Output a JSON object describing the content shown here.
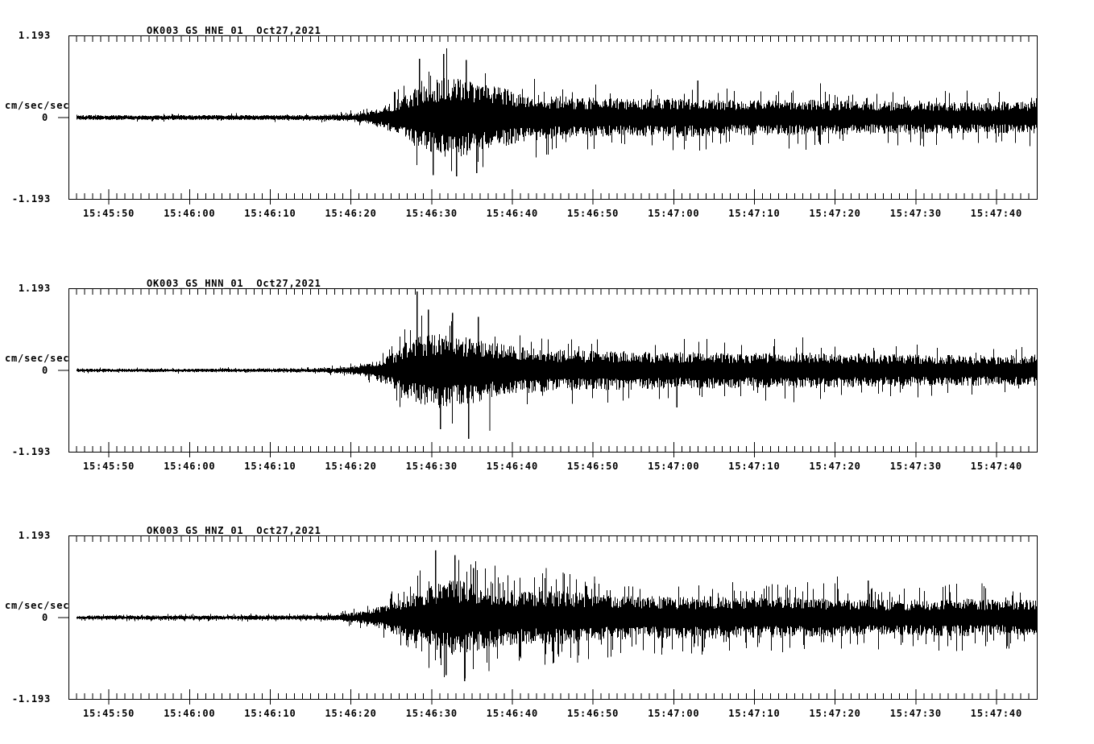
{
  "colors": {
    "background": "#ffffff",
    "ink": "#000000"
  },
  "time_axis": {
    "start_time": "15:45:45",
    "end_time": "15:47:45",
    "duration_sec": 120,
    "major_tick_interval_sec": 10,
    "minor_tick_interval_sec": 1,
    "tick_seconds": [
      5,
      15,
      25,
      35,
      45,
      55,
      65,
      75,
      85,
      95,
      105,
      115
    ],
    "tick_labels": [
      "15:45:50",
      "15:46:00",
      "15:46:10",
      "15:46:20",
      "15:46:30",
      "15:46:40",
      "15:46:50",
      "15:47:00",
      "15:47:10",
      "15:47:20",
      "15:47:30",
      "15:47:40"
    ]
  },
  "chart_data": [
    {
      "type": "line",
      "subtype": "seismogram",
      "title": "OK003_GS_HNE_01",
      "date": "Oct27,2021",
      "station": "OK003",
      "network": "GS",
      "channel": "HNE",
      "location": "01",
      "y_axis": {
        "units": "cm/sec/sec",
        "max_label": "1.193",
        "zero_label": "0",
        "min_label": "-1.193",
        "ylim": [
          -1.193,
          1.193
        ]
      },
      "x_start": "15:45:45",
      "x_end": "15:47:45",
      "trace": {
        "seed": 7,
        "spike_prob": 0.05,
        "envelope_t_sec": [
          0,
          30,
          34,
          37,
          40,
          42,
          44,
          46,
          48,
          50,
          53,
          56,
          60,
          65,
          70,
          75,
          80,
          85,
          90,
          95,
          100,
          105,
          110,
          115,
          120
        ],
        "envelope_amp": [
          0.042,
          0.048,
          0.06,
          0.107,
          0.262,
          0.453,
          0.597,
          0.716,
          0.74,
          0.656,
          0.573,
          0.453,
          0.394,
          0.37,
          0.346,
          0.37,
          0.334,
          0.322,
          0.346,
          0.322,
          0.298,
          0.31,
          0.286,
          0.298,
          0.31
        ],
        "peaks": [
          [
            43.5,
            0.86
          ],
          [
            45.2,
            -0.84
          ],
          [
            46.5,
            0.93
          ],
          [
            48.1,
            -0.86
          ],
          [
            49.3,
            0.84
          ],
          [
            50.6,
            -0.81
          ],
          [
            78.0,
            0.54
          ],
          [
            93.2,
            0.5
          ]
        ]
      }
    },
    {
      "type": "line",
      "subtype": "seismogram",
      "title": "OK003_GS_HNN_01",
      "date": "Oct27,2021",
      "station": "OK003",
      "network": "GS",
      "channel": "HNN",
      "location": "01",
      "y_axis": {
        "units": "cm/sec/sec",
        "max_label": "1.193",
        "zero_label": "0",
        "min_label": "-1.193",
        "ylim": [
          -1.193,
          1.193
        ]
      },
      "x_start": "15:45:45",
      "x_end": "15:47:45",
      "trace": {
        "seed": 13,
        "spike_prob": 0.05,
        "envelope_t_sec": [
          0,
          30,
          34,
          37,
          40,
          42,
          44,
          46,
          48,
          50,
          53,
          56,
          60,
          65,
          70,
          75,
          80,
          85,
          90,
          95,
          100,
          105,
          110,
          115,
          120
        ],
        "envelope_amp": [
          0.03,
          0.036,
          0.06,
          0.119,
          0.298,
          0.537,
          0.656,
          0.692,
          0.656,
          0.597,
          0.501,
          0.429,
          0.382,
          0.358,
          0.358,
          0.334,
          0.334,
          0.322,
          0.334,
          0.31,
          0.31,
          0.286,
          0.286,
          0.274,
          0.298
        ],
        "peaks": [
          [
            43.2,
            1.15
          ],
          [
            44.6,
            0.89
          ],
          [
            46.1,
            -0.86
          ],
          [
            47.6,
            0.84
          ],
          [
            49.6,
            -1.0
          ],
          [
            50.8,
            0.78
          ],
          [
            52.2,
            -0.88
          ],
          [
            75.4,
            -0.54
          ],
          [
            91.0,
            0.48
          ]
        ]
      }
    },
    {
      "type": "line",
      "subtype": "seismogram",
      "title": "OK003_GS_HNZ_01",
      "date": "Oct27,2021",
      "station": "OK003",
      "network": "GS",
      "channel": "HNZ",
      "location": "01",
      "y_axis": {
        "units": "cm/sec/sec",
        "max_label": "1.193",
        "zero_label": "0",
        "min_label": "-1.193",
        "ylim": [
          -1.193,
          1.193
        ]
      },
      "x_start": "15:45:45",
      "x_end": "15:47:45",
      "trace": {
        "seed": 29,
        "spike_prob": 0.12,
        "envelope_t_sec": [
          0,
          30,
          33,
          36,
          39,
          42,
          44,
          46,
          48,
          50,
          53,
          56,
          59,
          62,
          65,
          68,
          72,
          76,
          80,
          85,
          90,
          95,
          100,
          105,
          110,
          115,
          120
        ],
        "envelope_amp": [
          0.036,
          0.042,
          0.06,
          0.107,
          0.215,
          0.418,
          0.537,
          0.656,
          0.692,
          0.62,
          0.537,
          0.477,
          0.501,
          0.477,
          0.429,
          0.406,
          0.394,
          0.382,
          0.394,
          0.37,
          0.382,
          0.358,
          0.334,
          0.334,
          0.358,
          0.322,
          0.334
        ],
        "peaks": [
          [
            45.5,
            0.98
          ],
          [
            46.8,
            -0.84
          ],
          [
            47.9,
            0.91
          ],
          [
            49.1,
            -0.93
          ],
          [
            50.2,
            0.72
          ],
          [
            52.1,
            -0.78
          ],
          [
            59.2,
            0.72
          ],
          [
            61.3,
            0.66
          ],
          [
            63.1,
            -0.66
          ],
          [
            65.2,
            0.6
          ],
          [
            95.3,
            0.6
          ],
          [
            99.1,
            0.54
          ],
          [
            113.2,
            0.5
          ]
        ]
      }
    }
  ]
}
